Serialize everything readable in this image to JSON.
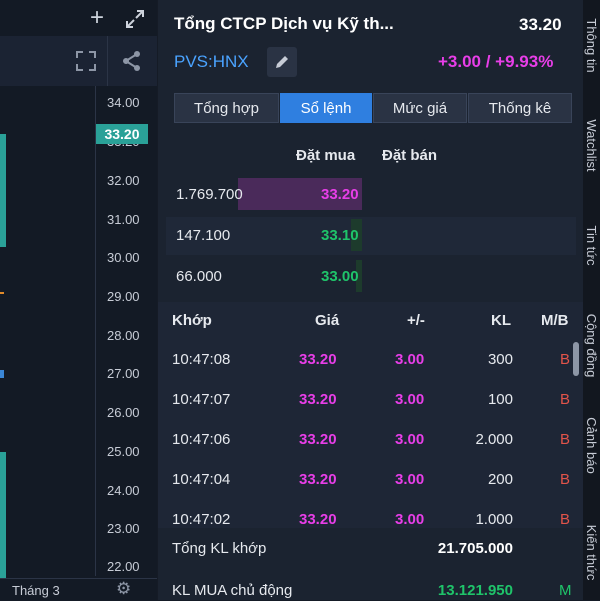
{
  "chart": {
    "y_ticks": [
      "34.00",
      "33.20",
      "32.00",
      "31.00",
      "30.00",
      "29.00",
      "28.00",
      "27.00",
      "26.00",
      "25.00",
      "24.00",
      "23.00",
      "22.00"
    ],
    "current_price_tag": "33.20",
    "month_label": "Tháng 3"
  },
  "header": {
    "title": "Tổng CTCP Dịch vụ Kỹ th...",
    "price": "33.20",
    "symbol": "PVS:HNX",
    "change": "+3.00 / +9.93%"
  },
  "tabs": [
    {
      "label": "Tổng hợp"
    },
    {
      "label": "Sổ lệnh"
    },
    {
      "label": "Mức giá"
    },
    {
      "label": "Thống kê"
    }
  ],
  "orderbook": {
    "buy_header": "Đặt mua",
    "sell_header": "Đặt bán",
    "rows": [
      {
        "volume": "1.769.700",
        "price": "33.20",
        "level": 1.0
      },
      {
        "volume": "147.100",
        "price": "33.10",
        "level": 0.09
      },
      {
        "volume": "66.000",
        "price": "33.00",
        "level": 0.04
      }
    ]
  },
  "trades": {
    "headers": {
      "time": "Khớp",
      "price": "Giá",
      "change": "+/-",
      "volume": "KL",
      "side": "M/B"
    },
    "rows": [
      {
        "time": "10:47:08",
        "price": "33.20",
        "change": "3.00",
        "volume": "300",
        "side": "B"
      },
      {
        "time": "10:47:07",
        "price": "33.20",
        "change": "3.00",
        "volume": "100",
        "side": "B"
      },
      {
        "time": "10:47:06",
        "price": "33.20",
        "change": "3.00",
        "volume": "2.000",
        "side": "B"
      },
      {
        "time": "10:47:04",
        "price": "33.20",
        "change": "3.00",
        "volume": "200",
        "side": "B"
      },
      {
        "time": "10:47:02",
        "price": "33.20",
        "change": "3.00",
        "volume": "1.000",
        "side": "B"
      }
    ]
  },
  "summary": {
    "total_label": "Tổng KL khớp",
    "total_value": "21.705.000",
    "active_buy_label": "KL MUA chủ động",
    "active_buy_value": "13.121.950",
    "active_buy_side": "M"
  },
  "sidebar": [
    "Thông tin",
    "Watchlist",
    "Tin tức",
    "Cộng đồng",
    "Cảnh báo",
    "Kiến thức"
  ],
  "colors": {
    "accent": "#2f7fe0",
    "magenta": "#e83ee8",
    "green": "#1fc46a",
    "red": "#e2544a",
    "teal": "#2aa198"
  }
}
